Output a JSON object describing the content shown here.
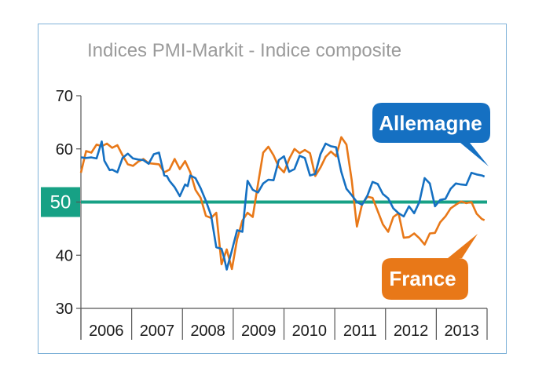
{
  "chart_data": {
    "type": "line",
    "title": "Indices PMI-Markit  - Indice composite",
    "xlabel": "",
    "ylabel": "",
    "ylim": [
      30,
      70
    ],
    "yticks": [
      "30",
      "40",
      "50",
      "60",
      "70"
    ],
    "year_labels": [
      "2006",
      "2007",
      "2008",
      "2009",
      "2010",
      "2011",
      "2012",
      "2013"
    ],
    "xlim": [
      2006.0,
      2013.8
    ],
    "reference_line": {
      "value": 50,
      "label": "50",
      "color": "#17a185"
    },
    "series": [
      {
        "name": "Allemagne",
        "color": "#1570c2",
        "x": [
          2006.0,
          2006.1,
          2006.2,
          2006.3,
          2006.4,
          2006.45,
          2006.55,
          2006.6,
          2006.7,
          2006.8,
          2006.9,
          2007.0,
          2007.1,
          2007.2,
          2007.3,
          2007.4,
          2007.5,
          2007.6,
          2007.65,
          2007.7,
          2007.8,
          2007.9,
          2008.0,
          2008.05,
          2008.1,
          2008.2,
          2008.3,
          2008.4,
          2008.5,
          2008.6,
          2008.7,
          2008.75,
          2008.8,
          2008.9,
          2009.0,
          2009.1,
          2009.2,
          2009.3,
          2009.4,
          2009.5,
          2009.6,
          2009.7,
          2009.8,
          2009.9,
          2010.0,
          2010.1,
          2010.2,
          2010.3,
          2010.4,
          2010.5,
          2010.6,
          2010.7,
          2010.8,
          2010.9,
          2011.0,
          2011.1,
          2011.2,
          2011.3,
          2011.4,
          2011.5,
          2011.6,
          2011.7,
          2011.8,
          2011.9,
          2012.0,
          2012.1,
          2012.2,
          2012.3,
          2012.4,
          2012.5,
          2012.6,
          2012.7,
          2012.8,
          2012.9,
          2013.0,
          2013.1,
          2013.2,
          2013.3,
          2013.4,
          2013.5,
          2013.6,
          2013.7,
          2013.75
        ],
        "y": [
          58.4,
          58.3,
          58.4,
          58.2,
          61.4,
          57.8,
          56.0,
          56.1,
          55.6,
          58.3,
          59.1,
          58.2,
          58.0,
          57.9,
          57.2,
          59.0,
          59.3,
          55.0,
          54.9,
          54.0,
          52.8,
          51.1,
          53.3,
          53.0,
          55.0,
          54.5,
          52.6,
          50.2,
          47.5,
          41.5,
          41.2,
          39.5,
          37.3,
          40.9,
          44.7,
          44.4,
          54.0,
          52.3,
          51.8,
          53.5,
          54.2,
          54.1,
          57.9,
          58.6,
          55.7,
          56.2,
          58.7,
          58.3,
          55.0,
          55.3,
          59.0,
          61.0,
          60.5,
          60.3,
          55.7,
          52.5,
          51.3,
          50.0,
          49.5,
          51.2,
          53.8,
          53.4,
          51.5,
          50.7,
          48.8,
          47.9,
          47.3,
          49.2,
          47.9,
          50.0,
          54.5,
          53.5,
          49.2,
          50.4,
          50.6,
          52.5,
          53.5,
          53.3,
          53.2,
          55.5,
          55.2,
          55.0,
          54.8
        ]
      },
      {
        "name": "France",
        "color": "#e87818",
        "x": [
          2006.0,
          2006.1,
          2006.2,
          2006.3,
          2006.4,
          2006.5,
          2006.6,
          2006.7,
          2006.8,
          2006.9,
          2007.0,
          2007.1,
          2007.2,
          2007.3,
          2007.4,
          2007.5,
          2007.6,
          2007.7,
          2007.8,
          2007.9,
          2008.0,
          2008.1,
          2008.2,
          2008.3,
          2008.4,
          2008.5,
          2008.6,
          2008.7,
          2008.8,
          2008.9,
          2009.0,
          2009.1,
          2009.2,
          2009.3,
          2009.4,
          2009.5,
          2009.6,
          2009.7,
          2009.8,
          2009.9,
          2010.0,
          2010.1,
          2010.2,
          2010.3,
          2010.4,
          2010.5,
          2010.6,
          2010.7,
          2010.8,
          2010.9,
          2011.0,
          2011.1,
          2011.2,
          2011.3,
          2011.4,
          2011.5,
          2011.6,
          2011.7,
          2011.8,
          2011.9,
          2012.0,
          2012.1,
          2012.2,
          2012.3,
          2012.4,
          2012.5,
          2012.6,
          2012.7,
          2012.8,
          2012.9,
          2013.0,
          2013.1,
          2013.2,
          2013.3,
          2013.4,
          2013.5,
          2013.6,
          2013.7,
          2013.75
        ],
        "y": [
          55.5,
          59.6,
          59.3,
          60.8,
          60.5,
          61.0,
          60.2,
          60.7,
          58.8,
          57.1,
          56.8,
          57.6,
          58.1,
          57.3,
          57.2,
          57.1,
          55.6,
          56.1,
          58.1,
          56.2,
          57.7,
          55.6,
          52.3,
          50.8,
          47.4,
          47.0,
          48.0,
          38.3,
          41.1,
          37.4,
          43.0,
          46.5,
          48.0,
          47.2,
          53.4,
          59.3,
          60.4,
          58.8,
          56.6,
          55.6,
          58.1,
          60.0,
          59.2,
          59.8,
          59.2,
          54.9,
          56.5,
          58.5,
          59.5,
          58.6,
          62.2,
          60.8,
          54.1,
          45.4,
          49.6,
          51.0,
          50.8,
          48.3,
          45.8,
          44.4,
          47.2,
          47.9,
          43.3,
          43.4,
          44.1,
          43.2,
          42.0,
          44.1,
          44.2,
          46.2,
          47.3,
          48.8,
          49.5,
          50.1,
          49.8,
          50.0,
          47.8,
          46.8,
          46.6
        ]
      }
    ],
    "callouts": {
      "allemagne": "Allemagne",
      "france": "France"
    }
  }
}
